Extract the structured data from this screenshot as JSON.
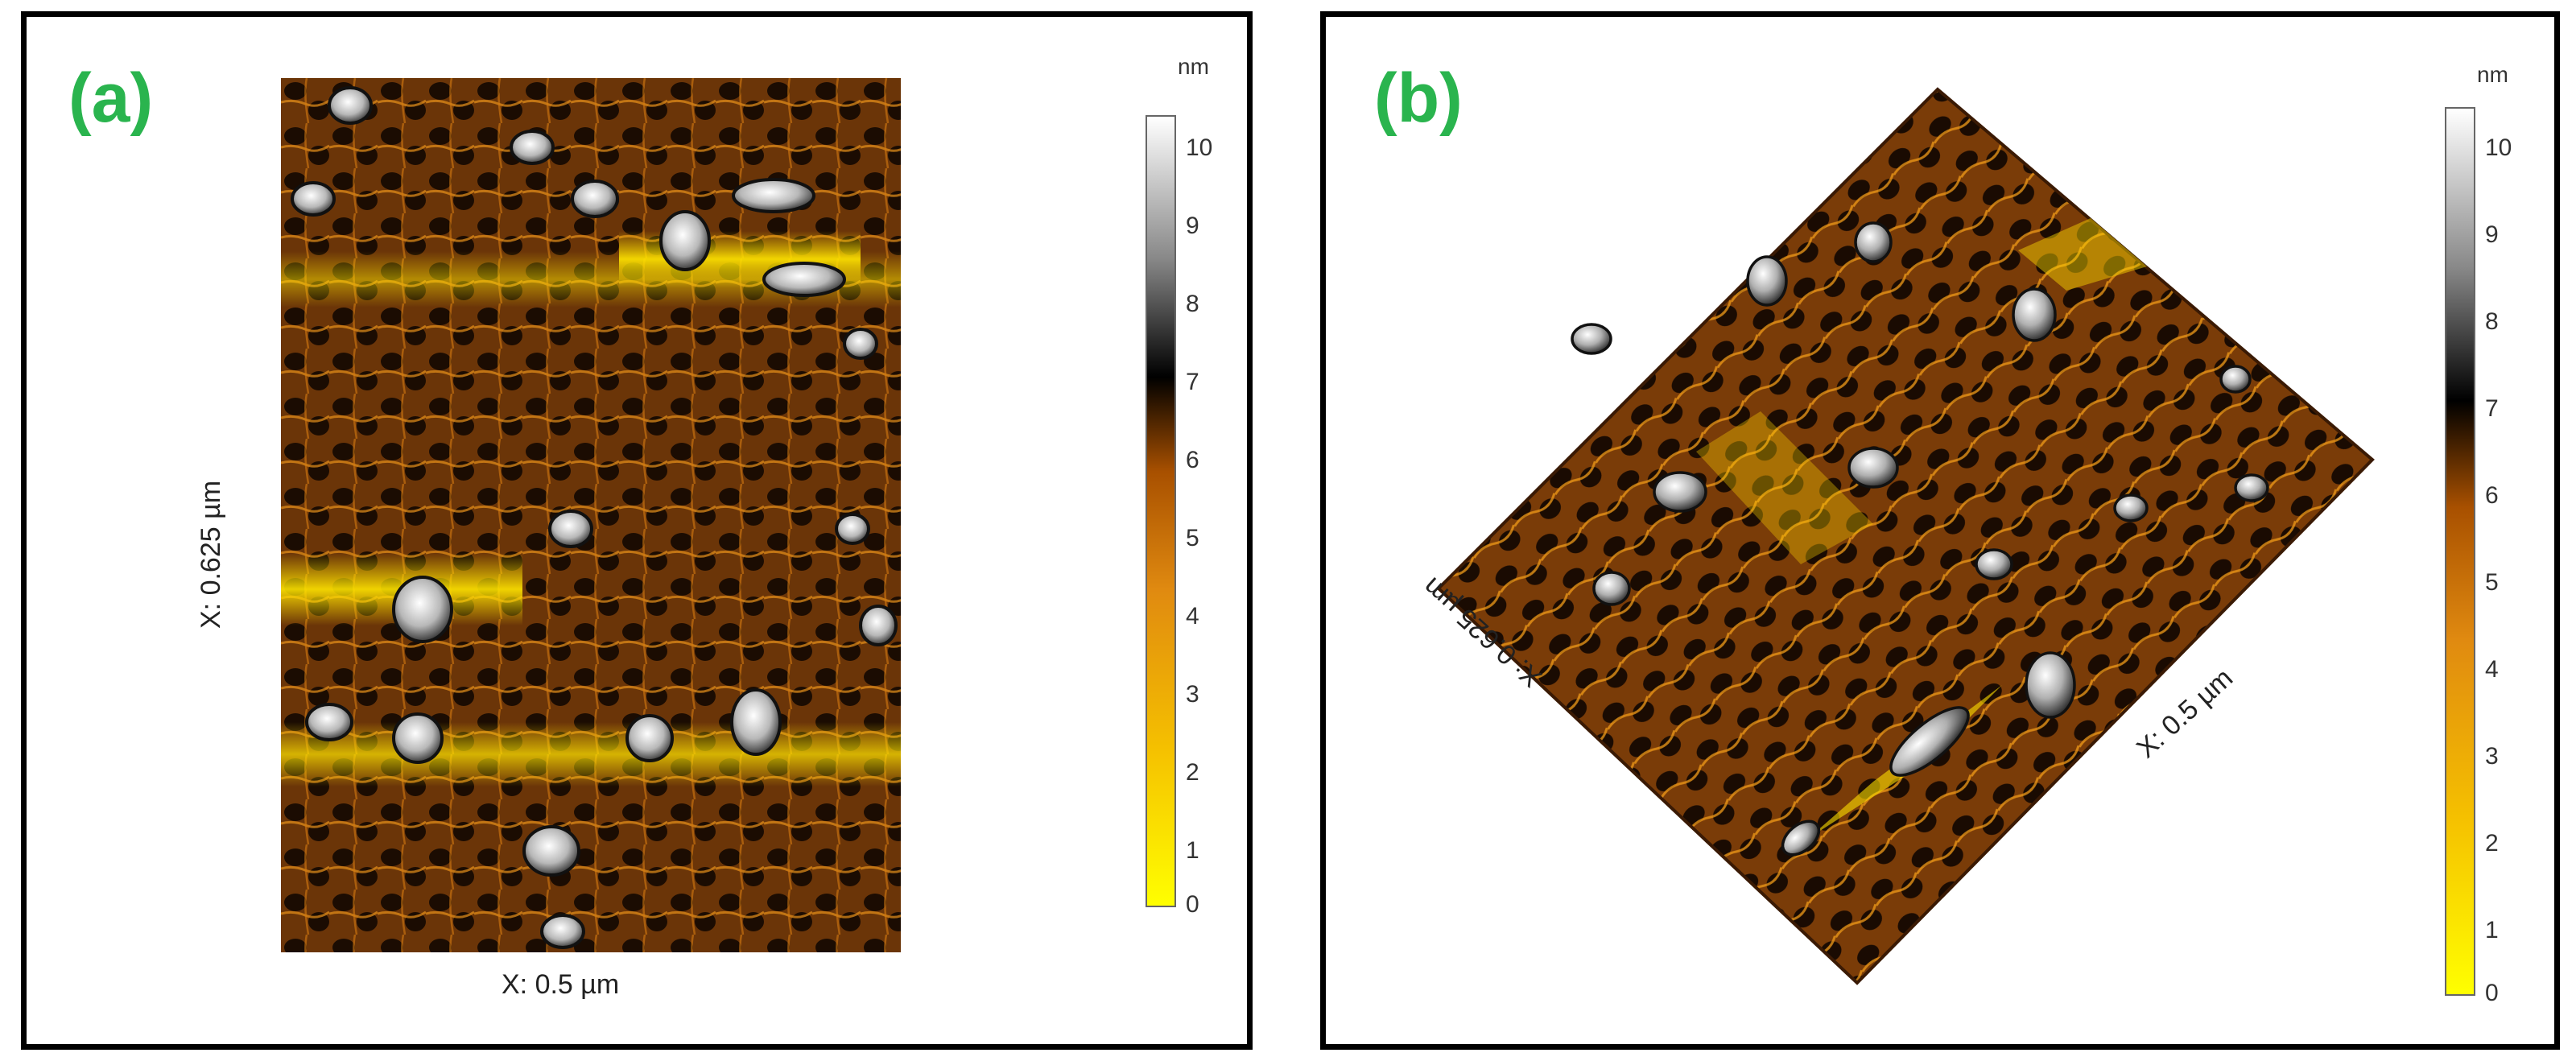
{
  "panel_a": {
    "label": "(a)",
    "x_axis_label": "X: 0.5 µm",
    "y_axis_label": "X: 0.625 µm"
  },
  "panel_b": {
    "label": "(b)",
    "axis_label_right": "X: 0.5 µm",
    "axis_label_left": "X: 0.625 µm"
  },
  "colorbar": {
    "unit": "nm",
    "ticks": [
      "10",
      "9",
      "8",
      "7",
      "6",
      "5",
      "4",
      "3",
      "2",
      "1",
      "0"
    ],
    "colors": {
      "low": "#ffff00",
      "mid_low": "#f0a000",
      "mid": "#a85000",
      "dark": "#000000",
      "high": "#ffffff"
    }
  },
  "palette": {
    "label_green": "#2ab44e",
    "surface_base": "#5a2e08",
    "pore": "#1a0c02",
    "ridge": "#e08a10"
  }
}
